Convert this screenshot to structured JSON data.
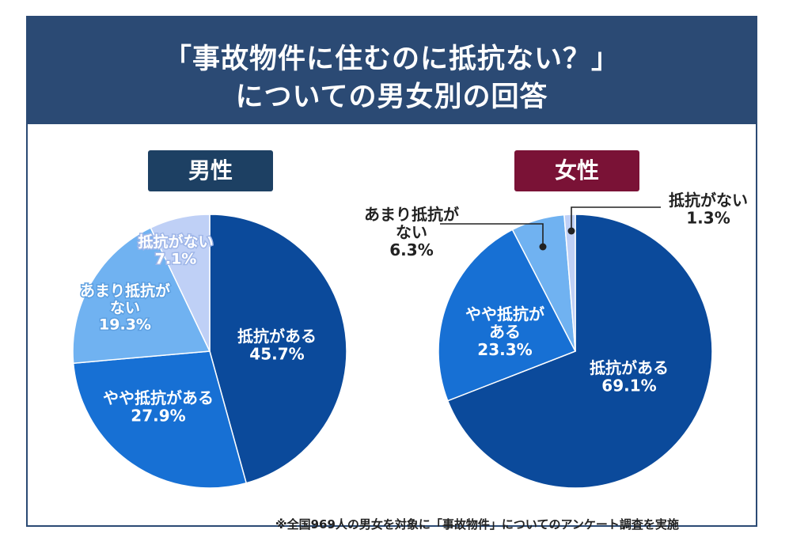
{
  "title": {
    "line1": "「事故物件に住むのに抵抗ない？」",
    "line2": "についての男女別の回答"
  },
  "footnote": "※全国969人の男女を対象に「事故物件」についてのアンケート調査を実施",
  "colors": {
    "header": "#2b4a74",
    "male_label_bg": "#1d4063",
    "female_label_bg": "#7a1236",
    "slice_1": "#0b4a9b",
    "slice_2": "#1770d4",
    "slice_3": "#70b2f1",
    "slice_4": "#bfd0f6"
  },
  "chart_data": [
    {
      "type": "pie",
      "label": "男性",
      "slices": [
        {
          "label": "抵抗がある",
          "value": 45.7,
          "value_text": "45.7%"
        },
        {
          "label": "やや抵抗がある",
          "value": 27.9,
          "value_text": "27.9%"
        },
        {
          "label": "あまり抵抗が\nない",
          "value": 19.3,
          "value_text": "19.3%"
        },
        {
          "label": "抵抗がない",
          "value": 7.1,
          "value_text": "7.1%"
        }
      ]
    },
    {
      "type": "pie",
      "label": "女性",
      "slices": [
        {
          "label": "抵抗がある",
          "value": 69.1,
          "value_text": "69.1%"
        },
        {
          "label": "やや抵抗が\nある",
          "value": 23.3,
          "value_text": "23.3%"
        },
        {
          "label": "あまり抵抗が\nない",
          "value": 6.3,
          "value_text": "6.3%"
        },
        {
          "label": "抵抗がない",
          "value": 1.3,
          "value_text": "1.3%"
        }
      ]
    }
  ]
}
